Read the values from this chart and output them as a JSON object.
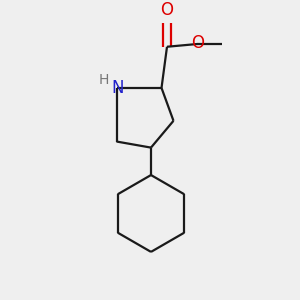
{
  "background_color": "#efefef",
  "bond_color": "#1a1a1a",
  "N_color": "#2222cc",
  "O_color": "#dd0000",
  "H_color": "#777777",
  "line_width": 1.6,
  "font_size_N": 12,
  "font_size_H": 10,
  "font_size_O": 12,
  "figsize": [
    3.0,
    3.0
  ],
  "dpi": 100,
  "xlim": [
    -0.55,
    0.75
  ],
  "ylim": [
    -1.05,
    0.95
  ]
}
